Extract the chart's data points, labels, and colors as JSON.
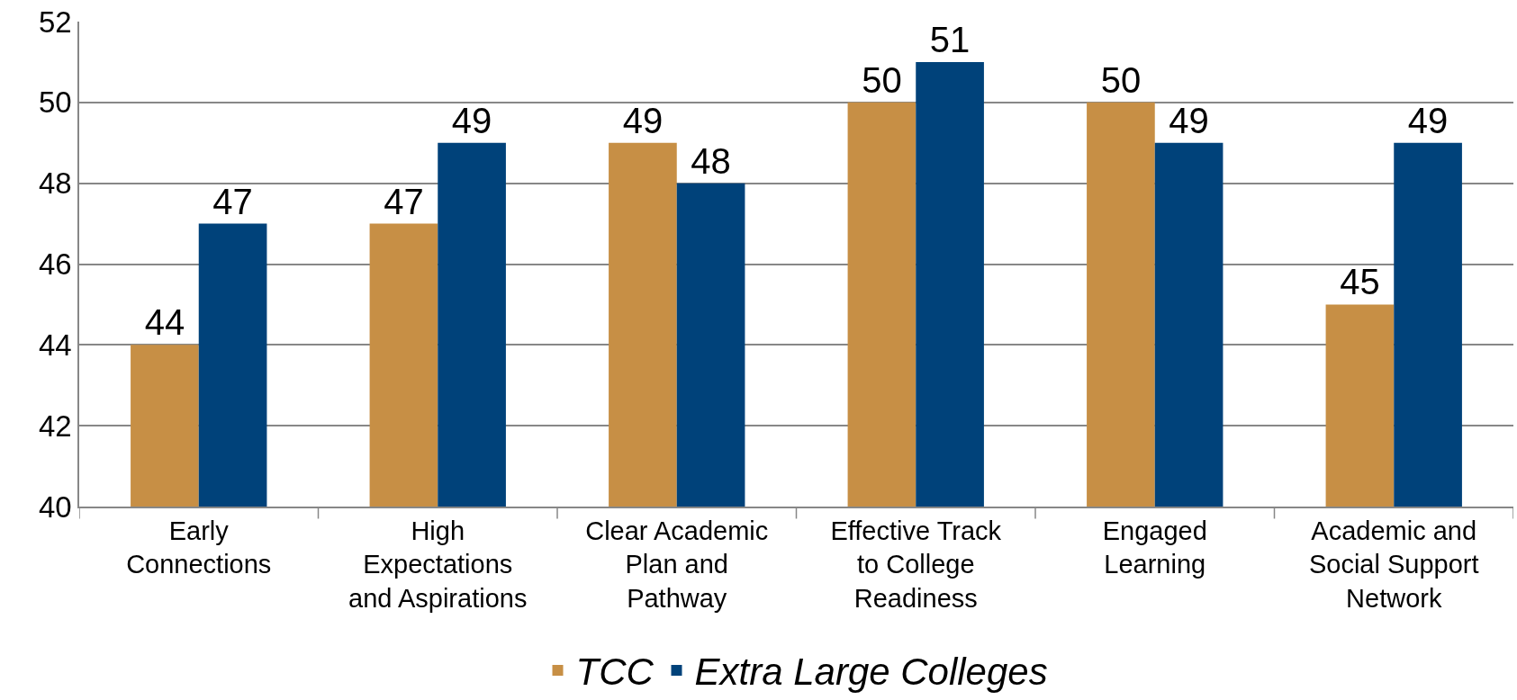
{
  "chart_data": {
    "type": "bar",
    "categories": [
      "Early Connections",
      "High Expectations and Aspirations",
      "Clear Academic Plan and Pathway",
      "Effective Track to College Readiness",
      "Engaged Learning",
      "Academic and Social Support Network"
    ],
    "series": [
      {
        "name": "TCC",
        "color": "#c78f45",
        "values": [
          44,
          47,
          49,
          50,
          50,
          45
        ]
      },
      {
        "name": "Extra Large Colleges",
        "color": "#00427a",
        "values": [
          47,
          49,
          48,
          51,
          49,
          49
        ]
      }
    ],
    "ylim": [
      40,
      52
    ],
    "yticks": [
      40,
      42,
      44,
      46,
      48,
      50,
      52
    ],
    "grid": "y",
    "legend": "bottom",
    "data_labels": true
  }
}
